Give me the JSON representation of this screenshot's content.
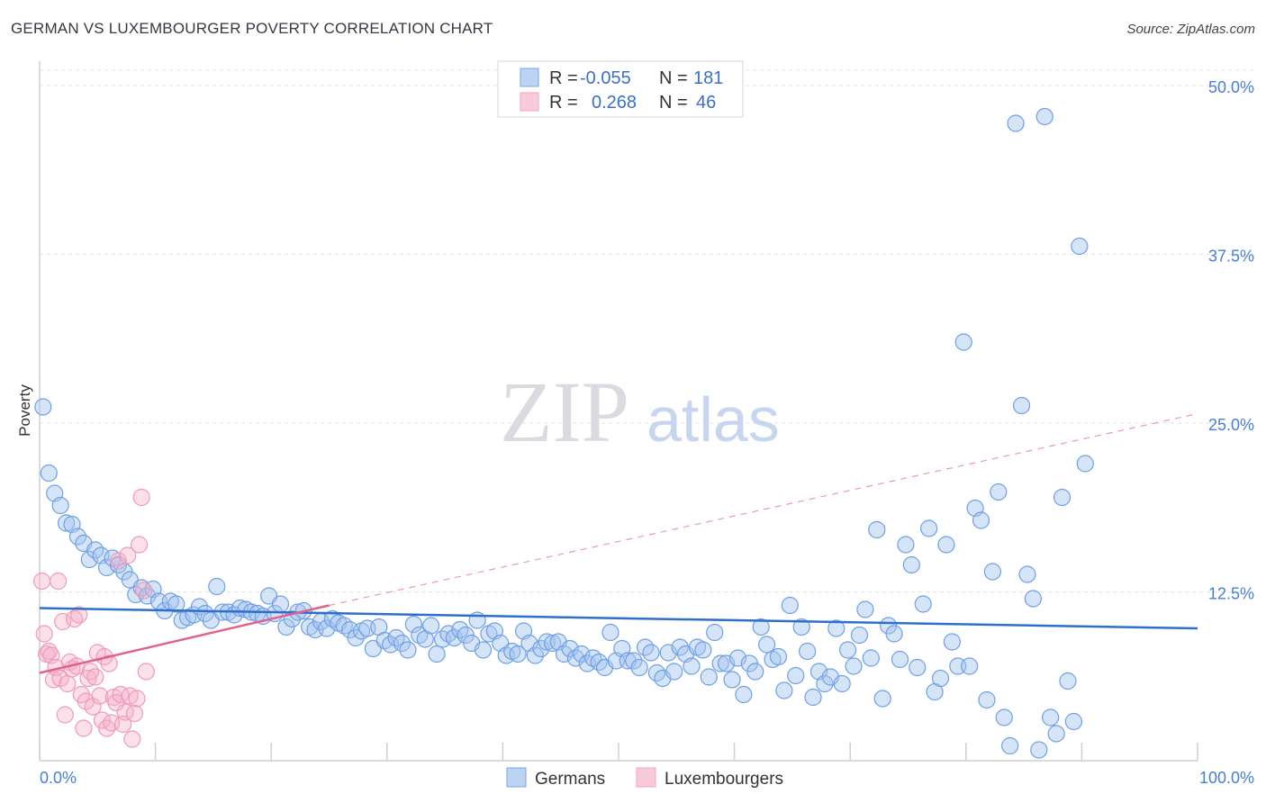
{
  "title": "GERMAN VS LUXEMBOURGER POVERTY CORRELATION CHART",
  "source": "Source: ZipAtlas.com",
  "watermark": {
    "part1": "ZIP",
    "part2": "atlas"
  },
  "chart_data": {
    "type": "scatter",
    "title": "GERMAN VS LUXEMBOURGER POVERTY CORRELATION CHART",
    "xlabel": "",
    "ylabel": "Poverty",
    "xlim": [
      0,
      100
    ],
    "ylim": [
      0,
      50
    ],
    "x_tick_labels": [
      "0.0%",
      "100.0%"
    ],
    "y_ticks": [
      12.5,
      25.0,
      37.5,
      50.0
    ],
    "y_tick_labels": [
      "12.5%",
      "25.0%",
      "37.5%",
      "50.0%"
    ],
    "grid": true,
    "legend_placement": "top-center",
    "legend": [
      {
        "r_label": "R =",
        "r_value": "-0.055",
        "n_label": "N =",
        "n_value": "181"
      },
      {
        "r_label": "R =",
        "r_value": "0.268",
        "n_label": "N =",
        "n_value": "46"
      }
    ],
    "series": [
      {
        "name": "Germans",
        "color": "#7aa6e6",
        "trend": {
          "x0": 0,
          "y0": 11.3,
          "x1": 100,
          "y1": 9.8,
          "color": "#2f6fcc"
        },
        "points": [
          [
            0.3,
            26.2
          ],
          [
            0.8,
            21.3
          ],
          [
            1.3,
            19.8
          ],
          [
            1.8,
            18.9
          ],
          [
            2.3,
            17.6
          ],
          [
            2.8,
            17.5
          ],
          [
            3.3,
            16.6
          ],
          [
            3.8,
            16.1
          ],
          [
            4.3,
            14.9
          ],
          [
            4.8,
            15.6
          ],
          [
            5.3,
            15.2
          ],
          [
            5.8,
            14.3
          ],
          [
            6.3,
            15.0
          ],
          [
            6.8,
            14.5
          ],
          [
            7.3,
            14.0
          ],
          [
            7.8,
            13.4
          ],
          [
            8.3,
            12.3
          ],
          [
            8.8,
            12.8
          ],
          [
            9.3,
            12.2
          ],
          [
            9.8,
            12.7
          ],
          [
            10.3,
            11.8
          ],
          [
            10.8,
            11.1
          ],
          [
            11.3,
            11.8
          ],
          [
            11.8,
            11.6
          ],
          [
            12.3,
            10.4
          ],
          [
            12.8,
            10.6
          ],
          [
            13.3,
            10.8
          ],
          [
            13.8,
            11.4
          ],
          [
            14.3,
            10.9
          ],
          [
            14.8,
            10.4
          ],
          [
            15.3,
            12.9
          ],
          [
            15.8,
            11.0
          ],
          [
            16.3,
            11.0
          ],
          [
            16.8,
            10.8
          ],
          [
            17.3,
            11.3
          ],
          [
            17.8,
            11.2
          ],
          [
            18.3,
            11.0
          ],
          [
            18.8,
            10.9
          ],
          [
            19.3,
            10.7
          ],
          [
            19.8,
            12.2
          ],
          [
            20.3,
            10.9
          ],
          [
            20.8,
            11.6
          ],
          [
            21.3,
            9.9
          ],
          [
            21.8,
            10.5
          ],
          [
            22.3,
            11.0
          ],
          [
            22.8,
            11.1
          ],
          [
            23.3,
            9.9
          ],
          [
            23.8,
            9.7
          ],
          [
            24.3,
            10.3
          ],
          [
            24.8,
            9.8
          ],
          [
            25.3,
            10.5
          ],
          [
            25.8,
            10.2
          ],
          [
            26.3,
            10.0
          ],
          [
            26.8,
            9.7
          ],
          [
            27.3,
            9.1
          ],
          [
            27.8,
            9.6
          ],
          [
            28.3,
            9.8
          ],
          [
            28.8,
            8.3
          ],
          [
            29.3,
            9.9
          ],
          [
            29.8,
            8.9
          ],
          [
            30.3,
            8.6
          ],
          [
            30.8,
            9.1
          ],
          [
            31.3,
            8.7
          ],
          [
            31.8,
            8.2
          ],
          [
            32.3,
            10.1
          ],
          [
            32.8,
            9.3
          ],
          [
            33.3,
            9.0
          ],
          [
            33.8,
            10.0
          ],
          [
            34.3,
            7.9
          ],
          [
            34.8,
            9.0
          ],
          [
            35.3,
            9.4
          ],
          [
            35.8,
            9.1
          ],
          [
            36.3,
            9.7
          ],
          [
            36.8,
            9.3
          ],
          [
            37.3,
            8.7
          ],
          [
            37.8,
            10.4
          ],
          [
            38.3,
            8.2
          ],
          [
            38.8,
            9.4
          ],
          [
            39.3,
            9.6
          ],
          [
            39.8,
            8.7
          ],
          [
            40.3,
            7.8
          ],
          [
            40.8,
            8.1
          ],
          [
            41.3,
            7.9
          ],
          [
            41.8,
            9.6
          ],
          [
            42.3,
            8.7
          ],
          [
            42.8,
            7.8
          ],
          [
            43.3,
            8.3
          ],
          [
            43.8,
            8.8
          ],
          [
            44.3,
            8.7
          ],
          [
            44.8,
            8.8
          ],
          [
            45.3,
            7.9
          ],
          [
            45.8,
            8.3
          ],
          [
            46.3,
            7.6
          ],
          [
            46.8,
            7.9
          ],
          [
            47.3,
            7.2
          ],
          [
            47.8,
            7.6
          ],
          [
            48.3,
            7.3
          ],
          [
            48.8,
            6.9
          ],
          [
            49.3,
            9.5
          ],
          [
            49.8,
            7.4
          ],
          [
            50.3,
            8.3
          ],
          [
            50.8,
            7.4
          ],
          [
            51.3,
            7.4
          ],
          [
            51.8,
            6.9
          ],
          [
            52.3,
            8.4
          ],
          [
            52.8,
            8.0
          ],
          [
            53.3,
            6.5
          ],
          [
            53.8,
            6.1
          ],
          [
            54.3,
            8.0
          ],
          [
            54.8,
            6.6
          ],
          [
            55.3,
            8.4
          ],
          [
            55.8,
            7.9
          ],
          [
            56.3,
            7.0
          ],
          [
            56.8,
            8.4
          ],
          [
            57.3,
            8.2
          ],
          [
            57.8,
            6.2
          ],
          [
            58.3,
            9.5
          ],
          [
            58.8,
            7.2
          ],
          [
            59.3,
            7.2
          ],
          [
            59.8,
            6.0
          ],
          [
            60.3,
            7.6
          ],
          [
            60.8,
            4.9
          ],
          [
            61.3,
            7.2
          ],
          [
            61.8,
            6.6
          ],
          [
            62.3,
            9.9
          ],
          [
            62.8,
            8.6
          ],
          [
            63.3,
            7.5
          ],
          [
            63.8,
            7.7
          ],
          [
            64.3,
            5.2
          ],
          [
            64.8,
            11.5
          ],
          [
            65.3,
            6.3
          ],
          [
            65.8,
            9.9
          ],
          [
            66.3,
            8.1
          ],
          [
            66.8,
            4.7
          ],
          [
            67.3,
            6.6
          ],
          [
            67.8,
            5.7
          ],
          [
            68.3,
            6.2
          ],
          [
            68.8,
            9.8
          ],
          [
            69.3,
            5.7
          ],
          [
            69.8,
            8.2
          ],
          [
            70.3,
            7.0
          ],
          [
            70.8,
            9.3
          ],
          [
            71.3,
            11.2
          ],
          [
            71.8,
            7.6
          ],
          [
            72.3,
            17.1
          ],
          [
            72.8,
            4.6
          ],
          [
            73.3,
            10.0
          ],
          [
            73.8,
            9.4
          ],
          [
            74.3,
            7.5
          ],
          [
            74.8,
            16.0
          ],
          [
            75.3,
            14.5
          ],
          [
            75.8,
            6.9
          ],
          [
            76.3,
            11.6
          ],
          [
            76.8,
            17.2
          ],
          [
            77.3,
            5.1
          ],
          [
            77.8,
            6.1
          ],
          [
            78.3,
            16.0
          ],
          [
            78.8,
            8.8
          ],
          [
            79.3,
            7.0
          ],
          [
            79.8,
            31.0
          ],
          [
            80.3,
            7.0
          ],
          [
            80.8,
            18.7
          ],
          [
            81.3,
            17.8
          ],
          [
            81.8,
            4.5
          ],
          [
            82.3,
            14.0
          ],
          [
            82.8,
            19.9
          ],
          [
            83.3,
            3.2
          ],
          [
            83.8,
            1.1
          ],
          [
            84.3,
            47.2
          ],
          [
            84.8,
            26.3
          ],
          [
            85.3,
            13.8
          ],
          [
            85.8,
            12.0
          ],
          [
            86.3,
            0.8
          ],
          [
            86.8,
            47.7
          ],
          [
            87.3,
            3.2
          ],
          [
            87.8,
            2.0
          ],
          [
            88.3,
            19.5
          ],
          [
            88.8,
            5.9
          ],
          [
            89.3,
            2.9
          ],
          [
            89.8,
            38.1
          ],
          [
            90.3,
            22.0
          ]
        ]
      },
      {
        "name": "Luxembourgers",
        "color": "#f2a6c0",
        "trend": {
          "x0": 0,
          "y0": 6.5,
          "x1": 25,
          "y1": 11.5,
          "color": "#e0628f",
          "dash_to_x": 100,
          "dash_to_y": 25.7
        },
        "points": [
          [
            0.2,
            13.3
          ],
          [
            0.4,
            9.4
          ],
          [
            0.6,
            7.9
          ],
          [
            0.8,
            8.1
          ],
          [
            1.0,
            7.8
          ],
          [
            1.2,
            6.0
          ],
          [
            1.4,
            6.9
          ],
          [
            1.6,
            13.3
          ],
          [
            1.8,
            6.1
          ],
          [
            2.0,
            10.3
          ],
          [
            2.2,
            3.4
          ],
          [
            2.4,
            5.7
          ],
          [
            2.6,
            7.3
          ],
          [
            2.8,
            6.8
          ],
          [
            3.0,
            10.5
          ],
          [
            3.2,
            7.0
          ],
          [
            3.4,
            10.8
          ],
          [
            3.6,
            4.9
          ],
          [
            3.8,
            2.4
          ],
          [
            4.0,
            4.4
          ],
          [
            4.2,
            6.1
          ],
          [
            4.4,
            6.6
          ],
          [
            4.6,
            4.0
          ],
          [
            4.8,
            6.2
          ],
          [
            5.0,
            8.0
          ],
          [
            5.2,
            4.8
          ],
          [
            5.4,
            3.0
          ],
          [
            5.6,
            7.7
          ],
          [
            5.8,
            2.4
          ],
          [
            6.0,
            7.2
          ],
          [
            6.2,
            2.8
          ],
          [
            6.4,
            4.7
          ],
          [
            6.6,
            4.3
          ],
          [
            6.8,
            14.8
          ],
          [
            7.0,
            4.9
          ],
          [
            7.2,
            2.7
          ],
          [
            7.4,
            3.6
          ],
          [
            7.6,
            15.2
          ],
          [
            7.8,
            4.8
          ],
          [
            8.0,
            1.6
          ],
          [
            8.2,
            3.5
          ],
          [
            8.4,
            4.6
          ],
          [
            8.6,
            16.0
          ],
          [
            8.8,
            19.5
          ],
          [
            9.0,
            12.6
          ],
          [
            9.2,
            6.6
          ]
        ]
      }
    ]
  }
}
